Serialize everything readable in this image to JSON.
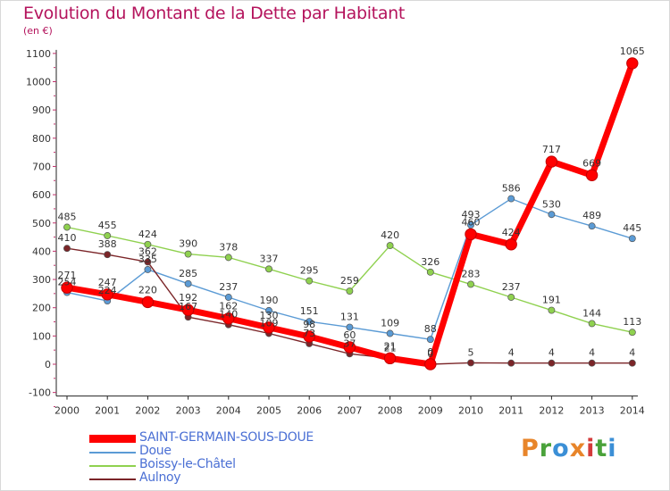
{
  "header": {
    "title": "Evolution du Montant de la Dette par Habitant",
    "unit": "(en €)"
  },
  "chart_data": {
    "type": "line",
    "title": "Evolution du Montant de la Dette par Habitant",
    "ylabel": "(en €)",
    "xlabel": "",
    "ylim": [
      -100,
      1100
    ],
    "y_ticks": [
      "-100",
      "0",
      "100",
      "200",
      "300",
      "400",
      "500",
      "600",
      "700",
      "800",
      "900",
      "1000",
      "1100"
    ],
    "categories": [
      "2000",
      "2001",
      "2002",
      "2003",
      "2004",
      "2005",
      "2006",
      "2007",
      "2008",
      "2009",
      "2010",
      "2011",
      "2012",
      "2013",
      "2014"
    ],
    "grid": false,
    "legend_position": "bottom-left",
    "series": [
      {
        "name": "Boissy-le-Châtel",
        "color": "#8fd14f",
        "values": [
          485,
          455,
          424,
          390,
          378,
          337,
          295,
          259,
          420,
          326,
          283,
          237,
          191,
          144,
          113
        ]
      },
      {
        "name": "Doue",
        "color": "#5b9bd5",
        "values": [
          254,
          224,
          335,
          285,
          237,
          190,
          151,
          131,
          109,
          88,
          493,
          586,
          530,
          489,
          445
        ]
      },
      {
        "name": "Aulnoy",
        "color": "#7b2528",
        "values": [
          410,
          388,
          362,
          167,
          140,
          109,
          73,
          37,
          21,
          0,
          5,
          4,
          4,
          4,
          4
        ]
      },
      {
        "name": "SAINT-GERMAIN-SOUS-DOUE",
        "color": "#ff0000",
        "values": [
          271,
          247,
          220,
          192,
          162,
          130,
          98,
          60,
          21,
          0,
          460,
          424,
          717,
          669,
          1065
        ]
      }
    ]
  },
  "legend": {
    "items": [
      {
        "label": "SAINT-GERMAIN-SOUS-DOUE",
        "color": "#ff0000"
      },
      {
        "label": "Doue",
        "color": "#5b9bd5"
      },
      {
        "label": "Boissy-le-Châtel",
        "color": "#8fd14f"
      },
      {
        "label": "Aulnoy",
        "color": "#7b2528"
      }
    ]
  },
  "logo": {
    "text": "Proxiti",
    "colors": [
      "#e8852a",
      "#4aa23a",
      "#3b8fd6",
      "#e8852a",
      "#d43b3b",
      "#4aa23a",
      "#3b8fd6"
    ]
  }
}
